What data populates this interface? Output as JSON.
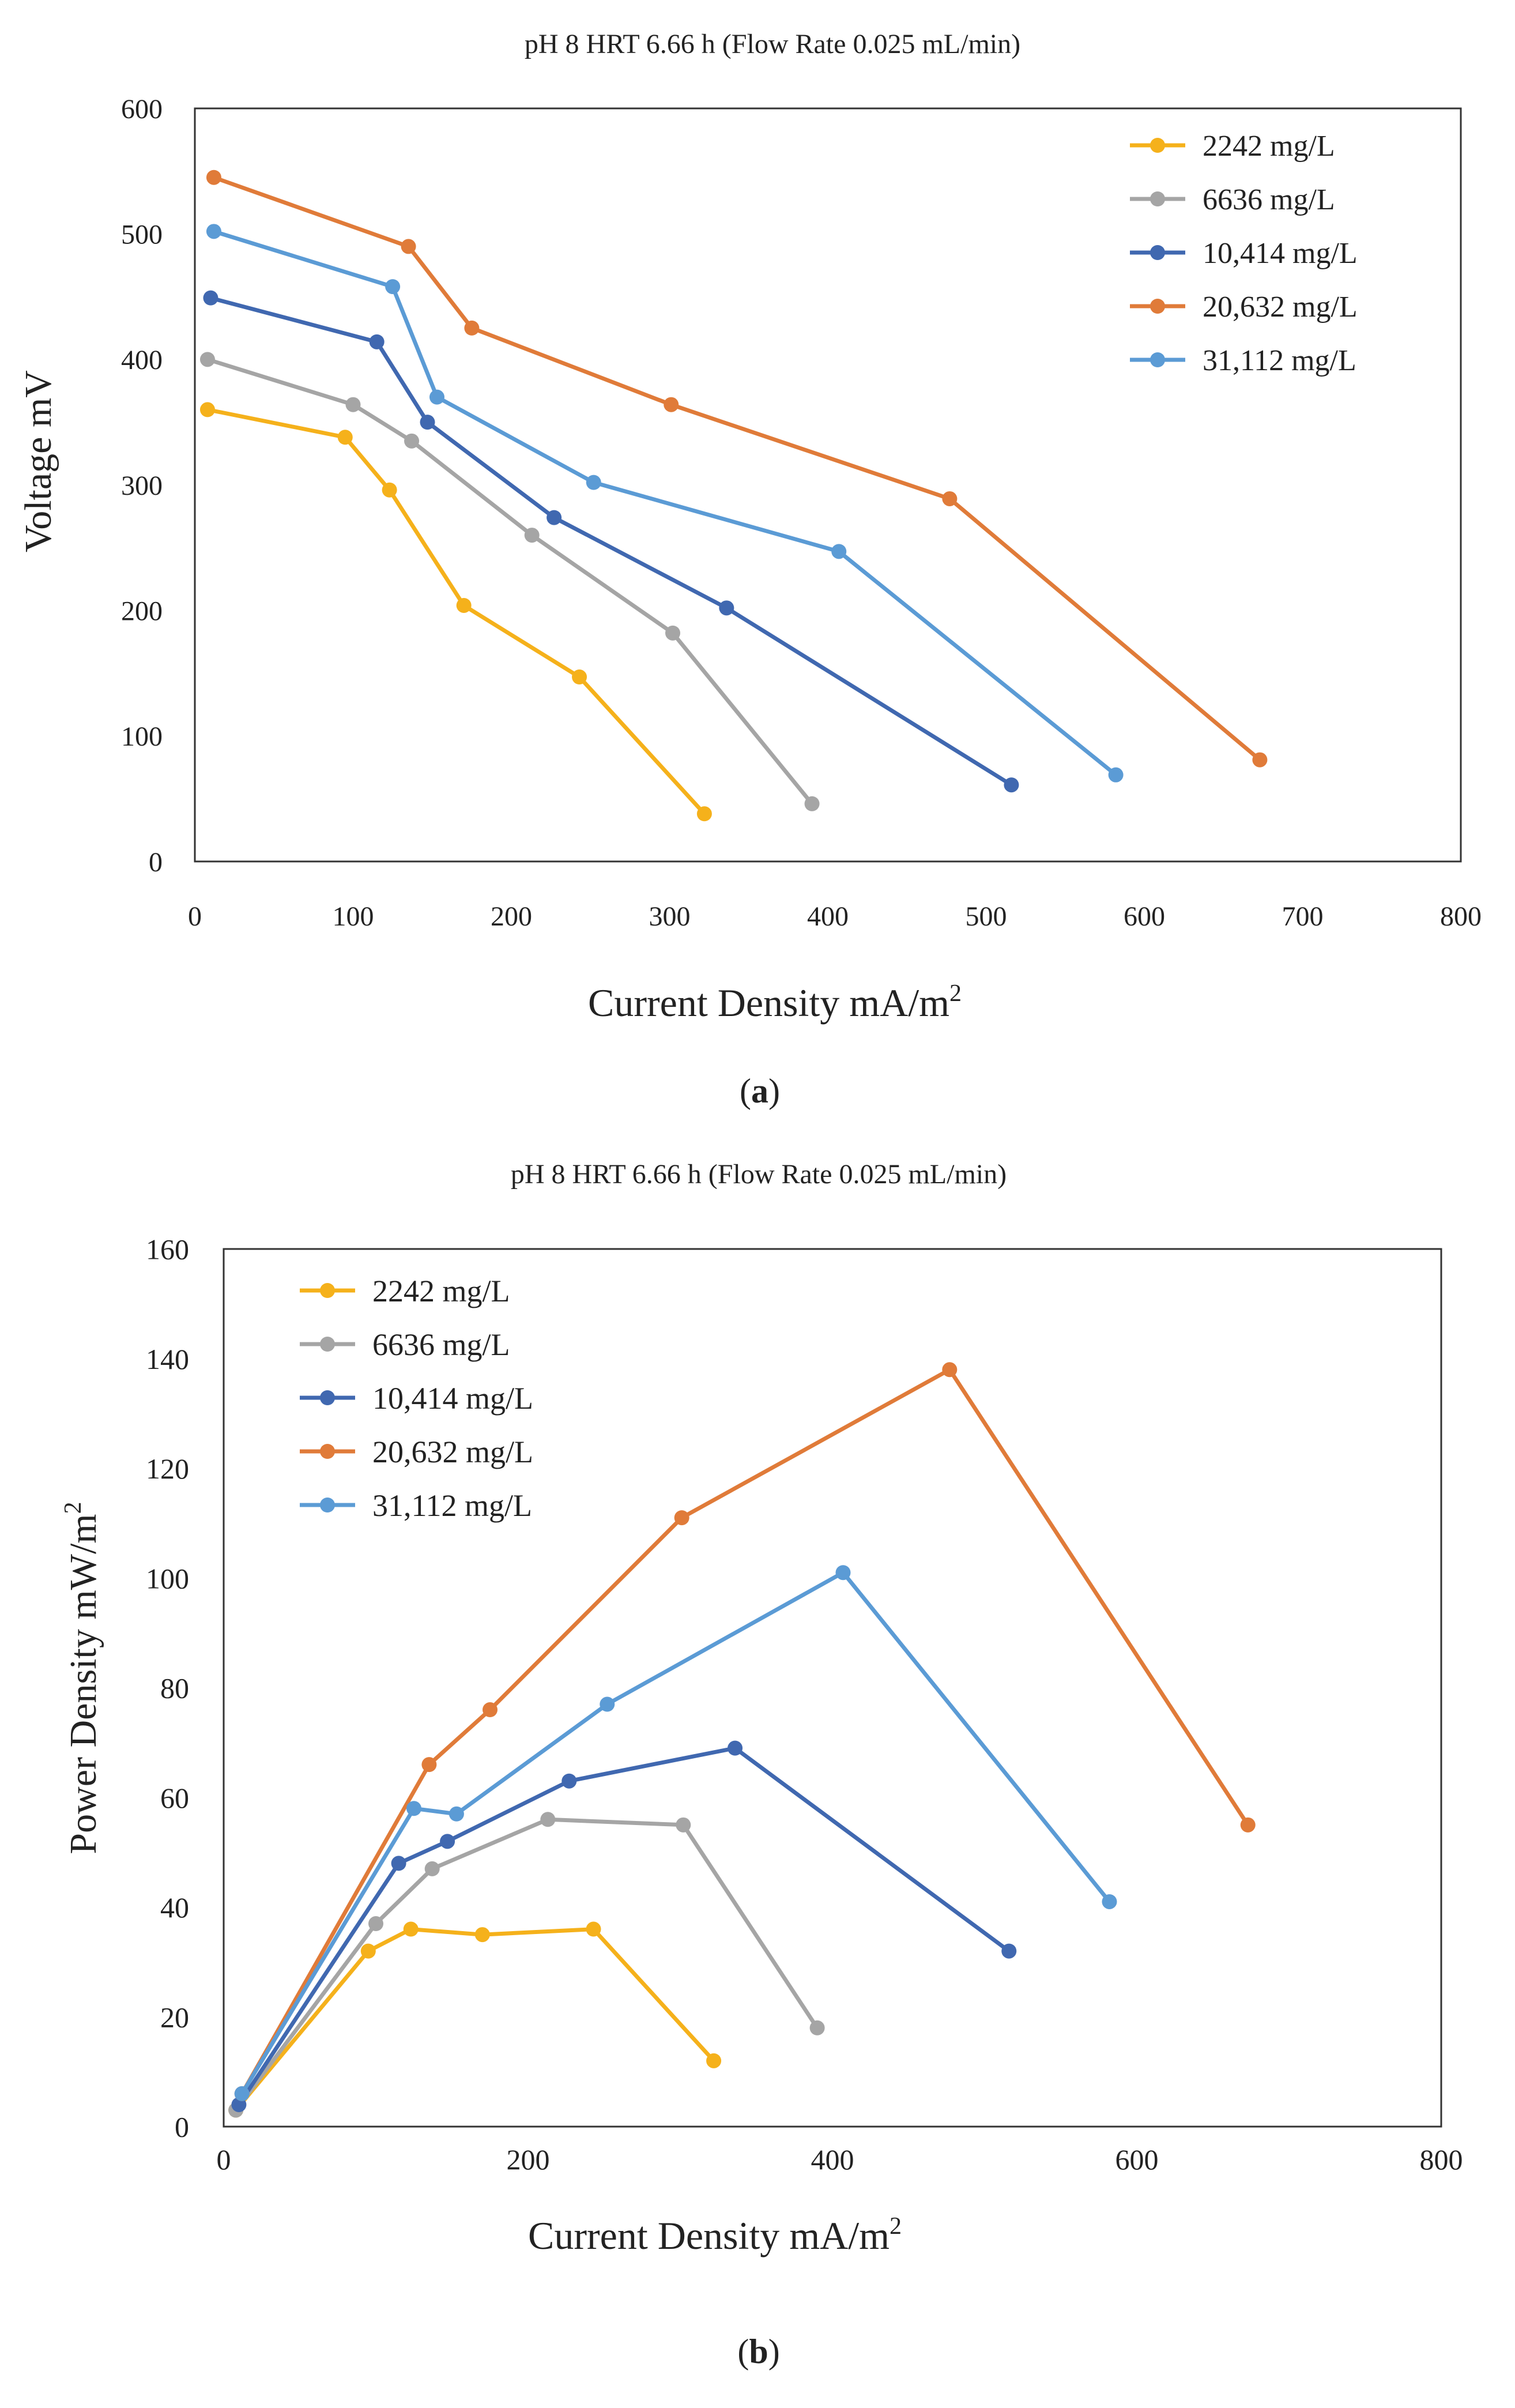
{
  "chart_data": [
    {
      "type": "line",
      "panel_label": "(a)",
      "panel_letter": "a",
      "title": "pH 8  HRT 6.66 h (Flow Rate 0.025 mL/min)",
      "xlabel": "Current Density mA/m",
      "xlabel_sup": "2",
      "ylabel": "Voltage mV",
      "xlim": [
        0,
        800
      ],
      "ylim": [
        0,
        600
      ],
      "xticks": [
        0,
        100,
        200,
        300,
        400,
        500,
        600,
        700,
        800
      ],
      "yticks": [
        0,
        100,
        200,
        300,
        400,
        500,
        600
      ],
      "legend_position": "top-right",
      "series": [
        {
          "name": "2242 mg/L",
          "color": "#F5B11B",
          "x": [
            8,
            95,
            123,
            170,
            243,
            322
          ],
          "y": [
            360,
            338,
            296,
            204,
            147,
            38
          ]
        },
        {
          "name": "6636 mg/L",
          "color": "#A5A5A5",
          "x": [
            8,
            100,
            137,
            213,
            302,
            390
          ],
          "y": [
            400,
            364,
            335,
            260,
            182,
            46
          ]
        },
        {
          "name": "10,414 mg/L",
          "color": "#4068B0",
          "x": [
            10,
            115,
            147,
            227,
            336,
            516
          ],
          "y": [
            449,
            414,
            350,
            274,
            202,
            61
          ]
        },
        {
          "name": "20,632 mg/L",
          "color": "#E07B39",
          "x": [
            12,
            135,
            175,
            301,
            477,
            673
          ],
          "y": [
            545,
            490,
            425,
            364,
            289,
            81
          ]
        },
        {
          "name": "31,112 mg/L",
          "color": "#5B9BD5",
          "x": [
            12,
            125,
            153,
            252,
            407,
            582
          ],
          "y": [
            502,
            458,
            370,
            302,
            247,
            69
          ]
        }
      ]
    },
    {
      "type": "line",
      "panel_label": "(b)",
      "panel_letter": "b",
      "title": "pH 8  HRT 6.66 h (Flow Rate 0.025 mL/min)",
      "xlabel": "Current Density mA/m",
      "xlabel_sup": "2",
      "ylabel": "Power Density mW/m",
      "ylabel_sup": "2",
      "xlim": [
        0,
        800
      ],
      "ylim": [
        0,
        160
      ],
      "xticks": [
        0,
        200,
        400,
        600,
        800
      ],
      "yticks": [
        0,
        20,
        40,
        60,
        80,
        100,
        120,
        140,
        160
      ],
      "legend_position": "top-left",
      "series": [
        {
          "name": "2242 mg/L",
          "color": "#F5B11B",
          "x": [
            8,
            95,
            123,
            170,
            243,
            322
          ],
          "y": [
            3,
            32,
            36,
            35,
            36,
            12
          ]
        },
        {
          "name": "6636 mg/L",
          "color": "#A5A5A5",
          "x": [
            8,
            100,
            137,
            213,
            302,
            390
          ],
          "y": [
            3,
            37,
            47,
            56,
            55,
            18
          ]
        },
        {
          "name": "10,414 mg/L",
          "color": "#4068B0",
          "x": [
            10,
            115,
            147,
            227,
            336,
            516
          ],
          "y": [
            4,
            48,
            52,
            63,
            69,
            32
          ]
        },
        {
          "name": "20,632 mg/L",
          "color": "#E07B39",
          "x": [
            12,
            135,
            175,
            301,
            477,
            673
          ],
          "y": [
            6,
            66,
            76,
            111,
            138,
            55
          ]
        },
        {
          "name": "31,112 mg/L",
          "color": "#5B9BD5",
          "x": [
            12,
            125,
            153,
            252,
            407,
            582
          ],
          "y": [
            6,
            58,
            57,
            77,
            101,
            41
          ]
        }
      ]
    }
  ]
}
